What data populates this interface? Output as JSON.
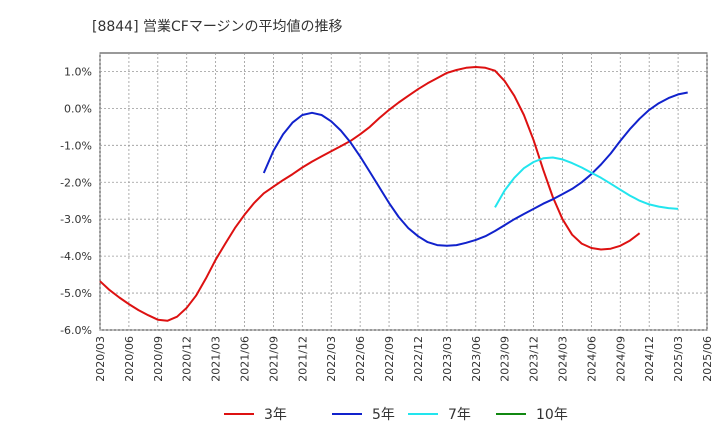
{
  "chart_data": {
    "type": "line",
    "title": "[8844]  営業CFマージンの平均値の推移",
    "xlabel": "",
    "ylabel": "",
    "ylim": [
      -6.0,
      1.5
    ],
    "y_ticks": [
      1.0,
      0.0,
      -1.0,
      -2.0,
      -3.0,
      -4.0,
      -5.0,
      -6.0
    ],
    "y_tick_labels": [
      "1.0%",
      "0.0%",
      "-1.0%",
      "-2.0%",
      "-3.0%",
      "-4.0%",
      "-5.0%",
      "-6.0%"
    ],
    "x_tick_labels": [
      "2020/03",
      "2020/06",
      "2020/09",
      "2020/12",
      "2021/03",
      "2021/06",
      "2021/09",
      "2021/12",
      "2022/03",
      "2022/06",
      "2022/09",
      "2022/12",
      "2023/03",
      "2023/06",
      "2023/09",
      "2023/12",
      "2024/03",
      "2024/06",
      "2024/09",
      "2024/12",
      "2025/03",
      "2025/06"
    ],
    "grid": true,
    "legend_position": "bottom",
    "series": [
      {
        "name": "3年",
        "color": "#dd1111",
        "start": "2020/03",
        "values": [
          -4.68,
          -4.92,
          -5.12,
          -5.3,
          -5.46,
          -5.6,
          -5.72,
          -5.75,
          -5.64,
          -5.4,
          -5.06,
          -4.6,
          -4.1,
          -3.66,
          -3.24,
          -2.88,
          -2.56,
          -2.3,
          -2.12,
          -1.94,
          -1.78,
          -1.6,
          -1.44,
          -1.3,
          -1.16,
          -1.02,
          -0.88,
          -0.7,
          -0.5,
          -0.26,
          -0.04,
          0.16,
          0.34,
          0.52,
          0.68,
          0.82,
          0.96,
          1.04,
          1.1,
          1.12,
          1.1,
          1.02,
          0.74,
          0.34,
          -0.18,
          -0.86,
          -1.66,
          -2.4,
          -3.0,
          -3.42,
          -3.66,
          -3.78,
          -3.82,
          -3.8,
          -3.72,
          -3.58,
          -3.38
        ]
      },
      {
        "name": "5年",
        "color": "#1122cc",
        "start": "2021/08",
        "values": [
          -1.75,
          -1.15,
          -0.7,
          -0.38,
          -0.18,
          -0.12,
          -0.18,
          -0.35,
          -0.6,
          -0.92,
          -1.3,
          -1.72,
          -2.14,
          -2.56,
          -2.94,
          -3.24,
          -3.46,
          -3.62,
          -3.7,
          -3.72,
          -3.7,
          -3.64,
          -3.56,
          -3.46,
          -3.32,
          -3.16,
          -3.0,
          -2.86,
          -2.72,
          -2.58,
          -2.46,
          -2.32,
          -2.18,
          -2.0,
          -1.78,
          -1.52,
          -1.22,
          -0.88,
          -0.56,
          -0.28,
          -0.04,
          0.14,
          0.28,
          0.38,
          0.43
        ]
      },
      {
        "name": "7年",
        "color": "#22e5ee",
        "start": "2023/08",
        "values": [
          -2.68,
          -2.22,
          -1.88,
          -1.62,
          -1.45,
          -1.35,
          -1.33,
          -1.38,
          -1.48,
          -1.6,
          -1.74,
          -1.88,
          -2.04,
          -2.2,
          -2.36,
          -2.5,
          -2.6,
          -2.66,
          -2.7,
          -2.72
        ]
      },
      {
        "name": "10年",
        "color": "#118811",
        "start": "",
        "values": []
      }
    ]
  }
}
